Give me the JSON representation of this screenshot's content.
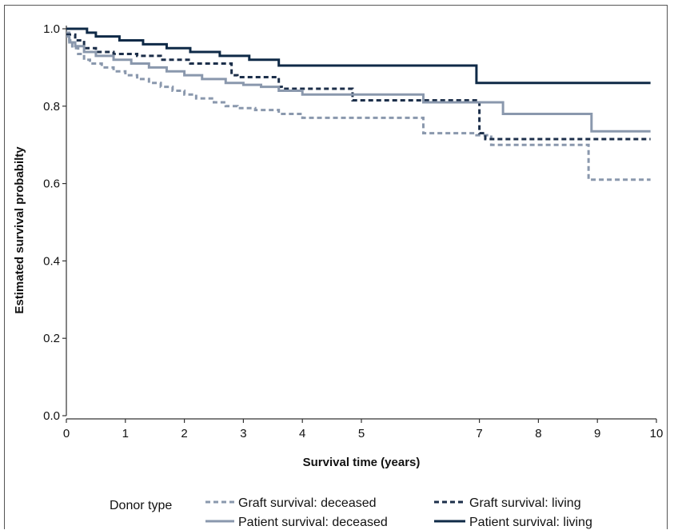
{
  "chart_data": {
    "type": "line",
    "step": true,
    "xlabel": "Survival time (years)",
    "ylabel": "Estimated survival probabilty",
    "xlim": [
      0,
      10
    ],
    "ylim": [
      0,
      1.0
    ],
    "x_ticks": [
      0,
      1,
      2,
      3,
      4,
      5,
      7,
      8,
      9,
      10
    ],
    "x_tick_labels": [
      "0",
      "1",
      "2",
      "3",
      "4",
      "5",
      "7",
      "8",
      "9",
      "10"
    ],
    "y_ticks": [
      0,
      0.2,
      0.4,
      0.6,
      0.8,
      1.0
    ],
    "y_tick_labels": [
      "0.0",
      "0.2",
      "0.4",
      "0.6",
      "0.8",
      "1.0"
    ],
    "grid": false,
    "legend": {
      "title": "Donor type",
      "placement": "bottom"
    },
    "series": [
      {
        "name": "Graft survival: deceased",
        "color": "#8a98ad",
        "dash": "dashed",
        "x": [
          0,
          0.05,
          0.1,
          0.2,
          0.3,
          0.4,
          0.6,
          0.8,
          1.0,
          1.2,
          1.4,
          1.6,
          1.8,
          2.0,
          2.2,
          2.5,
          2.7,
          2.9,
          3.2,
          3.6,
          4.0,
          6.05,
          6.95,
          7.2,
          8.85,
          9.9
        ],
        "y": [
          0.99,
          0.97,
          0.95,
          0.935,
          0.92,
          0.91,
          0.9,
          0.89,
          0.88,
          0.87,
          0.86,
          0.85,
          0.84,
          0.83,
          0.82,
          0.81,
          0.8,
          0.795,
          0.79,
          0.78,
          0.77,
          0.73,
          0.725,
          0.7,
          0.61,
          0.61
        ]
      },
      {
        "name": "Graft survival: living",
        "color": "#1c2f4a",
        "dash": "dashed",
        "x": [
          0,
          0.15,
          0.3,
          0.5,
          0.8,
          1.2,
          1.6,
          2.1,
          2.8,
          2.9,
          3.6,
          3.65,
          4.85,
          5.0,
          7.0,
          7.1,
          9.9
        ],
        "y": [
          0.985,
          0.97,
          0.95,
          0.94,
          0.935,
          0.93,
          0.92,
          0.91,
          0.88,
          0.875,
          0.85,
          0.845,
          0.815,
          0.815,
          0.73,
          0.715,
          0.715
        ]
      },
      {
        "name": "Patient survival: deceased",
        "color": "#8a98ad",
        "dash": "solid",
        "x": [
          0,
          0.05,
          0.15,
          0.3,
          0.5,
          0.8,
          1.1,
          1.4,
          1.7,
          2.0,
          2.3,
          2.7,
          3.0,
          3.3,
          3.6,
          4.0,
          6.0,
          6.05,
          7.4,
          8.9,
          9.9
        ],
        "y": [
          0.98,
          0.965,
          0.955,
          0.94,
          0.93,
          0.92,
          0.91,
          0.9,
          0.89,
          0.88,
          0.87,
          0.86,
          0.855,
          0.85,
          0.84,
          0.83,
          0.83,
          0.81,
          0.78,
          0.735,
          0.735
        ]
      },
      {
        "name": "Patient survival: living",
        "color": "#0f2a47",
        "dash": "solid",
        "x": [
          0,
          0.35,
          0.5,
          0.9,
          1.3,
          1.7,
          2.1,
          2.6,
          3.1,
          3.6,
          6.95,
          9.9
        ],
        "y": [
          1.0,
          0.99,
          0.98,
          0.97,
          0.96,
          0.95,
          0.94,
          0.93,
          0.92,
          0.905,
          0.86,
          0.86
        ]
      }
    ]
  }
}
